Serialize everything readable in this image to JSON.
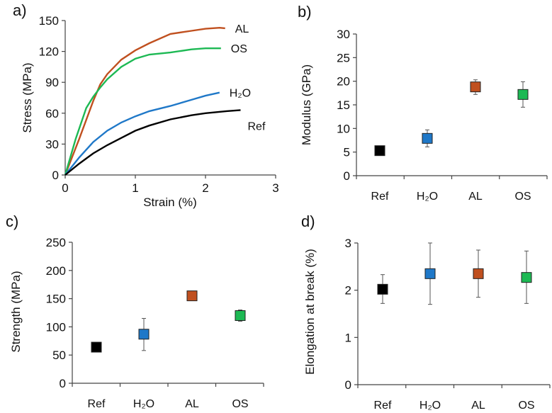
{
  "chart_data": [
    {
      "panel_label": "a)",
      "type": "line",
      "xlabel": "Strain (%)",
      "ylabel": "Stress (MPa)",
      "xlim": [
        0,
        3
      ],
      "ylim": [
        0,
        150
      ],
      "xticks": [
        "0",
        "1",
        "2",
        "3"
      ],
      "yticks": [
        "0",
        "30",
        "60",
        "90",
        "120",
        "150"
      ],
      "grid": false,
      "series": [
        {
          "name": "AL",
          "color": "#c0501f",
          "x": [
            0,
            0.2,
            0.4,
            0.5,
            0.6,
            0.8,
            1,
            1.2,
            1.5,
            1.8,
            2.0,
            2.2,
            2.28
          ],
          "y": [
            0,
            35,
            72,
            88,
            98,
            112,
            121,
            128,
            137,
            140,
            142,
            143,
            142.5
          ]
        },
        {
          "name": "OS",
          "color": "#1db954",
          "x": [
            0,
            0.15,
            0.3,
            0.4,
            0.5,
            0.6,
            0.8,
            1,
            1.2,
            1.5,
            1.8,
            2.0,
            2.22
          ],
          "y": [
            0,
            35,
            65,
            76,
            85,
            93,
            105,
            113,
            117,
            119,
            122,
            123,
            123
          ]
        },
        {
          "name": "H₂O",
          "color": "#1f78c8",
          "x": [
            0,
            0.2,
            0.4,
            0.6,
            0.8,
            1,
            1.2,
            1.5,
            1.8,
            2.0,
            2.2
          ],
          "y": [
            0,
            17,
            32,
            43,
            51,
            57,
            62,
            67,
            73,
            77,
            80
          ]
        },
        {
          "name": "Ref",
          "color": "#000000",
          "x": [
            0,
            0.2,
            0.4,
            0.6,
            0.8,
            1,
            1.2,
            1.5,
            1.8,
            2.0,
            2.3,
            2.5
          ],
          "y": [
            0,
            11,
            21,
            29,
            36,
            43,
            48,
            54,
            58,
            60,
            62,
            63
          ]
        }
      ]
    },
    {
      "panel_label": "b)",
      "type": "scatter",
      "ylabel": "Modulus (GPa)",
      "ylim": [
        0,
        30
      ],
      "yticks": [
        "0",
        "5",
        "10",
        "15",
        "20",
        "25",
        "30"
      ],
      "categories": [
        "Ref",
        "H₂O",
        "AL",
        "OS"
      ],
      "colors": [
        "#000000",
        "#1f78c8",
        "#c0501f",
        "#1db954"
      ],
      "values": [
        5.3,
        7.9,
        18.8,
        17.2
      ],
      "error_low": [
        5.3,
        6.1,
        17.2,
        14.5
      ],
      "error_high": [
        5.3,
        9.7,
        20.3,
        19.9
      ]
    },
    {
      "panel_label": "c)",
      "type": "scatter",
      "ylabel": "Strength (MPa)",
      "ylim": [
        0,
        250
      ],
      "yticks": [
        "0",
        "50",
        "100",
        "150",
        "200",
        "250"
      ],
      "categories": [
        "Ref",
        "H₂O",
        "AL",
        "OS"
      ],
      "colors": [
        "#000000",
        "#1f78c8",
        "#c0501f",
        "#1db954"
      ],
      "values": [
        64,
        87,
        155,
        120
      ],
      "error_low": [
        64,
        58,
        155,
        110
      ],
      "error_high": [
        64,
        115,
        155,
        130
      ]
    },
    {
      "panel_label": "d)",
      "type": "scatter",
      "ylabel": "Elongation at break (%)",
      "ylim": [
        0,
        3
      ],
      "yticks": [
        "0",
        "1",
        "2",
        "3"
      ],
      "categories": [
        "Ref",
        "H₂O",
        "AL",
        "OS"
      ],
      "colors": [
        "#000000",
        "#1f78c8",
        "#c0501f",
        "#1db954"
      ],
      "values": [
        2.02,
        2.35,
        2.35,
        2.27
      ],
      "error_low": [
        1.72,
        1.7,
        1.85,
        1.72
      ],
      "error_high": [
        2.33,
        3.0,
        2.85,
        2.83
      ]
    }
  ]
}
